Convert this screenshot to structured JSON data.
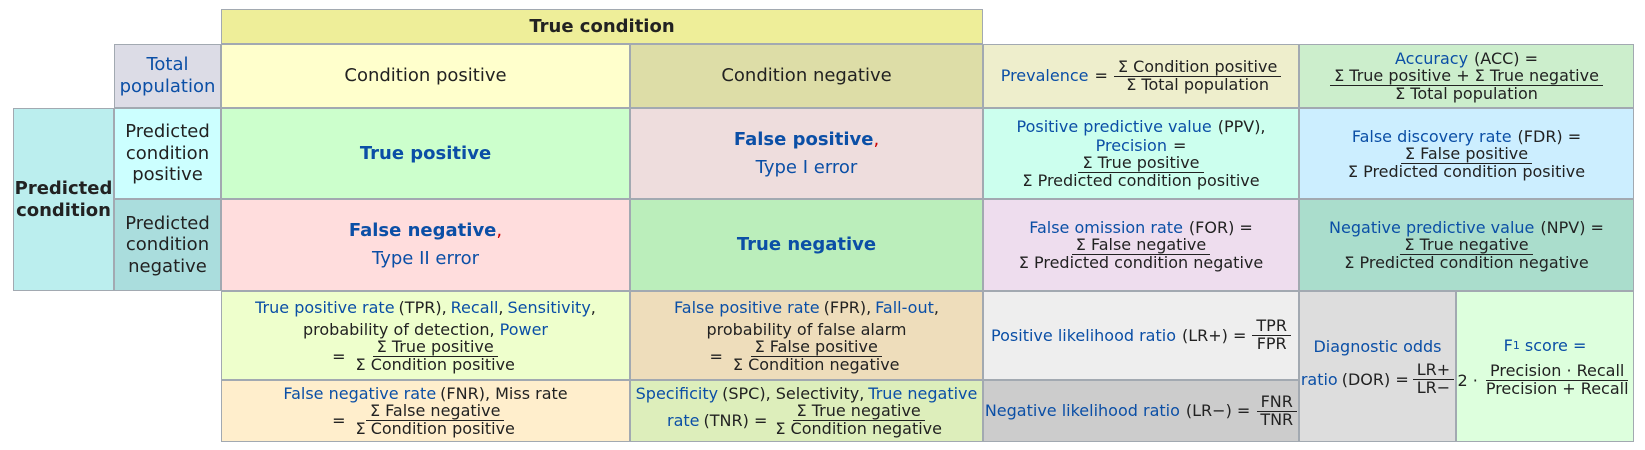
{
  "header": {
    "true_condition": "True condition"
  },
  "total_population": {
    "line1": "Total",
    "line2": "population"
  },
  "condition_positive": "Condition positive",
  "condition_negative": "Condition negative",
  "prevalence": {
    "label": "Prevalence",
    "eq": "=",
    "num": "Σ Condition positive",
    "den": "Σ Total population"
  },
  "accuracy": {
    "label": "Accuracy",
    "abbr": "(ACC) =",
    "num": "Σ True positive + Σ True negative",
    "den": "Σ Total population"
  },
  "predicted_condition": {
    "line1": "Predicted",
    "line2": "condition"
  },
  "pred_pos": {
    "l1": "Predicted",
    "l2": "condition",
    "l3": "positive"
  },
  "pred_neg": {
    "l1": "Predicted",
    "l2": "condition",
    "l3": "negative"
  },
  "true_positive": "True positive",
  "false_positive": {
    "label": "False positive",
    "comma": ",",
    "sub": "Type I error"
  },
  "false_negative": {
    "label": "False negative",
    "comma": ",",
    "sub": "Type II error"
  },
  "true_negative": "True negative",
  "ppv": {
    "label": "Positive predictive value",
    "abbr": "(PPV),",
    "label2": "Precision",
    "eq": "=",
    "num": "Σ True positive",
    "den": "Σ Predicted condition positive"
  },
  "fdr": {
    "label": "False discovery rate",
    "abbr": "(FDR) =",
    "num": "Σ False positive",
    "den": "Σ Predicted condition positive"
  },
  "for": {
    "label": "False omission rate",
    "abbr": "(FOR) =",
    "num": "Σ False negative",
    "den": "Σ Predicted condition negative"
  },
  "npv": {
    "label": "Negative predictive value",
    "abbr": "(NPV) =",
    "num": "Σ True negative",
    "den": "Σ Predicted condition negative"
  },
  "tpr": {
    "t1": "True positive rate",
    "t2": "(TPR),",
    "t3": "Recall",
    "t4": ",",
    "t5": "Sensitivity",
    "t6": ",",
    "t7": "probability of detection,",
    "t8": "Power",
    "eq": "=",
    "num": "Σ True positive",
    "den": "Σ Condition positive"
  },
  "fpr": {
    "t1": "False positive rate",
    "t2": "(FPR),",
    "t3": "Fall-out",
    "t4": ",",
    "t5": "probability of false alarm",
    "eq": "=",
    "num": "Σ False positive",
    "den": "Σ Condition negative"
  },
  "lrp": {
    "label": "Positive likelihood ratio",
    "abbr": "(LR+) =",
    "num": "TPR",
    "den": "FPR"
  },
  "dor": {
    "label1": "Diagnostic odds",
    "label2": "ratio",
    "abbr": "(DOR) =",
    "num": "LR+",
    "den": "LR−"
  },
  "f1": {
    "label": "F",
    "sub": "1",
    "label_rest": " score =",
    "pre": "2 ·",
    "num": "Precision · Recall",
    "den": "Precision + Recall"
  },
  "fnr": {
    "t1": "False negative rate",
    "t2": "(FNR), Miss rate",
    "eq": "=",
    "num": "Σ False negative",
    "den": "Σ Condition positive"
  },
  "spc": {
    "t1": "Specificity",
    "t2": "(SPC), Selectivity,",
    "t3": "True negative",
    "t4": "rate",
    "t5": "(TNR) =",
    "num": "Σ True negative",
    "den": "Σ Condition negative"
  },
  "lrn": {
    "label": "Negative likelihood ratio",
    "abbr": "(LR−) =",
    "num": "FNR",
    "den": "TNR"
  },
  "colors": {
    "true_condition": "#eeee99",
    "total": "#dcdce6",
    "cond_pos": "#ffffcc",
    "cond_neg": "#dddda7",
    "prevalence": "#eeeecc",
    "accuracy": "#cceecc",
    "pred": "#bbeeee",
    "pred_pos": "#ccffff",
    "pred_neg": "#aadddd",
    "tp": "#ccffcc",
    "fp": "#eedddd",
    "fn": "#ffdddd",
    "tn": "#bbeebb",
    "ppv": "#ccffee",
    "fdr": "#cceeff",
    "for": "#eeddee",
    "npv": "#aaddcc",
    "tpr": "#eeffcc",
    "fpr": "#eeddbb",
    "lrp": "#eeeeee",
    "dor": "#dddddd",
    "f1": "#ddffdd",
    "fnr": "#ffeecc",
    "spc": "#ddeebb",
    "lrn": "#cccccc"
  }
}
